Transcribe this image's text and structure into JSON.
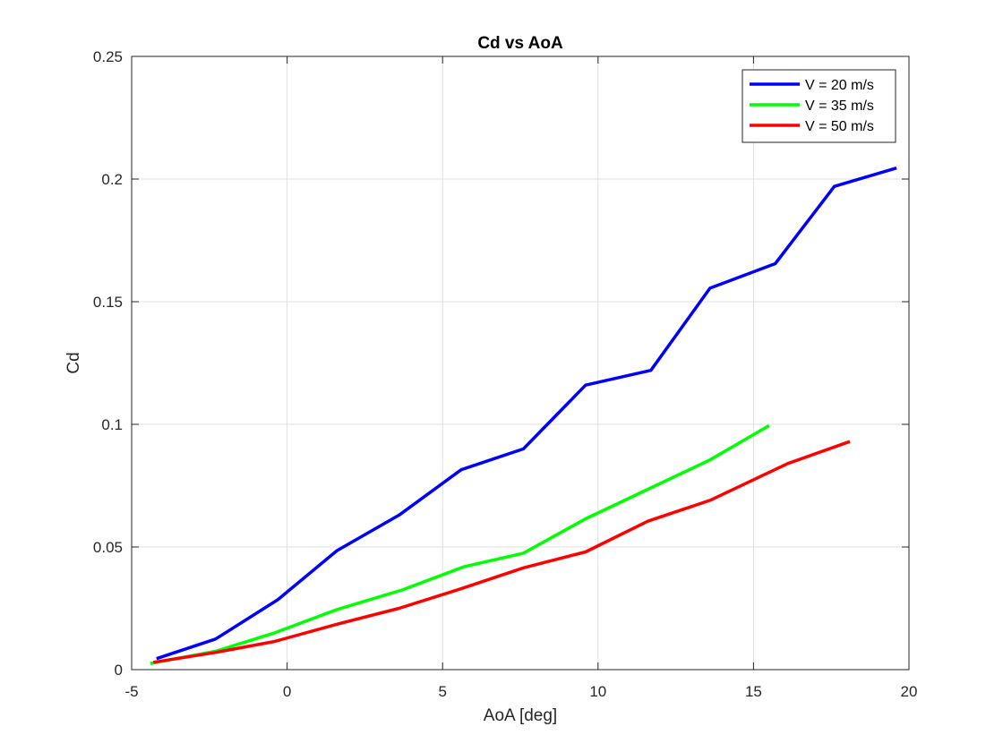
{
  "chart_data": {
    "type": "line",
    "title": "Cd vs AoA",
    "xlabel": "AoA [deg]",
    "ylabel": "Cd",
    "xlim": [
      -5,
      20
    ],
    "ylim": [
      0,
      0.25
    ],
    "xticks": [
      -5,
      0,
      5,
      10,
      15,
      20
    ],
    "xtick_labels": [
      "-5",
      "0",
      "5",
      "10",
      "15",
      "20"
    ],
    "yticks": [
      0,
      0.05,
      0.1,
      0.15,
      0.2,
      0.25
    ],
    "ytick_labels": [
      "0",
      "0.05",
      "0.1",
      "0.15",
      "0.2",
      "0.25"
    ],
    "grid": true,
    "legend_position": "top-right",
    "series": [
      {
        "name": "V = 20 m/s",
        "color": "#0000ff",
        "x": [
          -4.2,
          -2.3,
          -0.3,
          1.6,
          3.6,
          5.6,
          7.6,
          9.6,
          11.7,
          13.6,
          15.7,
          17.6,
          19.6
        ],
        "y": [
          0.0045,
          0.0125,
          0.0285,
          0.0485,
          0.063,
          0.0815,
          0.09,
          0.116,
          0.122,
          0.1555,
          0.1655,
          0.197,
          0.2045
        ]
      },
      {
        "name": "V = 35 m/s",
        "color": "#00ff00",
        "x": [
          -4.4,
          -2.3,
          -0.4,
          1.6,
          3.7,
          5.7,
          7.6,
          9.6,
          13.6,
          15.5
        ],
        "y": [
          0.0025,
          0.0075,
          0.015,
          0.0245,
          0.0325,
          0.042,
          0.0475,
          0.0615,
          0.0855,
          0.0995
        ]
      },
      {
        "name": "V = 50 m/s",
        "color": "#ff0000",
        "x": [
          -4.3,
          -2.3,
          -0.4,
          1.6,
          3.6,
          5.6,
          7.6,
          9.6,
          11.6,
          13.6,
          16.1,
          18.1
        ],
        "y": [
          0.003,
          0.007,
          0.0115,
          0.0185,
          0.025,
          0.033,
          0.0415,
          0.048,
          0.0605,
          0.069,
          0.084,
          0.093
        ]
      }
    ]
  }
}
